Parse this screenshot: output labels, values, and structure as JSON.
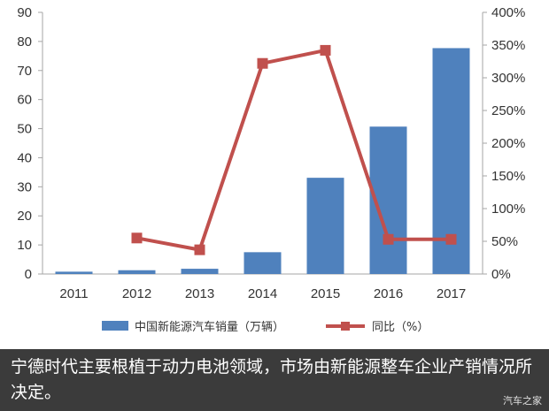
{
  "chart_data": {
    "type": "bar+line",
    "categories": [
      "2011",
      "2012",
      "2013",
      "2014",
      "2015",
      "2016",
      "2017"
    ],
    "series": [
      {
        "name": "中国新能源汽车销量（万辆）",
        "type": "bar",
        "axis": "left",
        "color": "#4f81bd",
        "values": [
          0.8,
          1.3,
          1.8,
          7.5,
          33.1,
          50.7,
          77.7
        ]
      },
      {
        "name": "同比（%）",
        "type": "line",
        "axis": "right",
        "color": "#c0504d",
        "values": [
          null,
          55,
          37,
          322,
          342,
          53,
          53
        ]
      }
    ],
    "y_left": {
      "min": 0,
      "max": 90,
      "step": 10,
      "ticks": [
        "0",
        "10",
        "20",
        "30",
        "40",
        "50",
        "60",
        "70",
        "80",
        "90"
      ]
    },
    "y_right": {
      "min": 0,
      "max": 400,
      "step": 50,
      "ticks": [
        "0%",
        "50%",
        "100%",
        "150%",
        "200%",
        "250%",
        "300%",
        "350%",
        "400%"
      ]
    },
    "grid": false,
    "legend_position": "bottom"
  },
  "caption": {
    "text": "宁德时代主要根植于动力电池领域，市场由新能源整车企业产销情况所决定。",
    "watermark": "汽车之家"
  }
}
